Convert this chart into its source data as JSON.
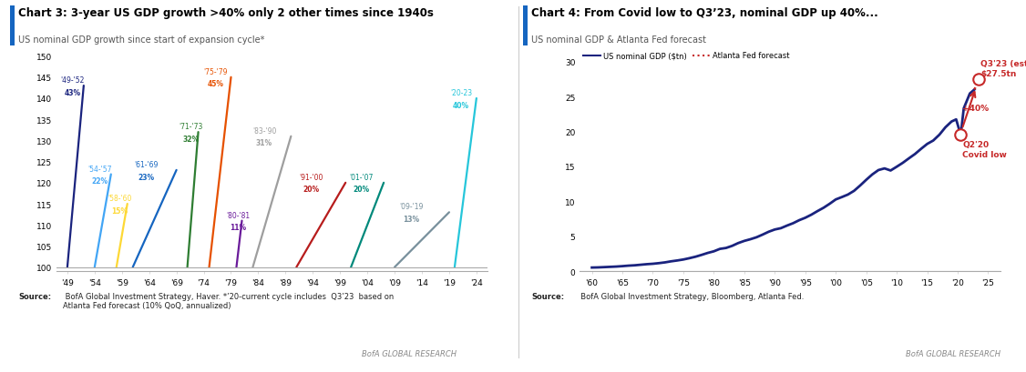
{
  "chart3": {
    "title": "Chart 3: 3-year US GDP growth >40% only 2 other times since 1940s",
    "subtitle": "US nominal GDP growth since start of expansion cycle*",
    "bars": [
      {
        "label": "'49-'52",
        "pct": "43%",
        "x_start": 49,
        "x_end": 52,
        "y_end": 143,
        "color": "#1a237e"
      },
      {
        "label": "'54-'57",
        "pct": "22%",
        "x_start": 54,
        "x_end": 57,
        "y_end": 122,
        "color": "#42a5f5"
      },
      {
        "label": "'58-'60",
        "pct": "15%",
        "x_start": 58,
        "x_end": 60,
        "y_end": 115,
        "color": "#fdd835"
      },
      {
        "label": "'61-'69",
        "pct": "23%",
        "x_start": 61,
        "x_end": 69,
        "y_end": 123,
        "color": "#1565c0"
      },
      {
        "label": "'71-'73",
        "pct": "32%",
        "x_start": 71,
        "x_end": 73,
        "y_end": 132,
        "color": "#2e7d32"
      },
      {
        "label": "'75-'79",
        "pct": "45%",
        "x_start": 75,
        "x_end": 79,
        "y_end": 145,
        "color": "#e65100"
      },
      {
        "label": "'80-'81",
        "pct": "11%",
        "x_start": 80,
        "x_end": 81,
        "y_end": 111,
        "color": "#6a1b9a"
      },
      {
        "label": "'83-'90",
        "pct": "31%",
        "x_start": 83,
        "x_end": 90,
        "y_end": 131,
        "color": "#9e9e9e"
      },
      {
        "label": "'91-'00",
        "pct": "20%",
        "x_start": 91,
        "x_end": 100,
        "y_end": 120,
        "color": "#b71c1c"
      },
      {
        "label": "'01-'07",
        "pct": "20%",
        "x_start": 101,
        "x_end": 107,
        "y_end": 120,
        "color": "#00897b"
      },
      {
        "label": "'09-'19",
        "pct": "13%",
        "x_start": 109,
        "x_end": 119,
        "y_end": 113,
        "color": "#78909c"
      },
      {
        "label": "'20-23",
        "pct": "40%",
        "x_start": 120,
        "x_end": 124,
        "y_end": 140,
        "color": "#26c6da"
      }
    ],
    "xlim": [
      47,
      126
    ],
    "ylim": [
      99,
      152
    ],
    "yticks": [
      100,
      105,
      110,
      115,
      120,
      125,
      130,
      135,
      140,
      145,
      150
    ],
    "xticks": [
      49,
      54,
      59,
      64,
      69,
      74,
      79,
      84,
      89,
      94,
      99,
      104,
      109,
      114,
      119,
      124
    ],
    "xtick_labels": [
      "'49",
      "'54",
      "'59",
      "'64",
      "'69",
      "'74",
      "'79",
      "'84",
      "'89",
      "'94",
      "'99",
      "'04",
      "'09",
      "'14",
      "'19",
      "'24"
    ],
    "source_bold": "Source:",
    "source_normal": " BofA Global Investment Strategy, Haver. *’20-current cycle includes  Q3’23  based on\nAtlanta Fed forecast (10% QoQ, annualized)",
    "bofa_label": "BofA GLOBAL RESEARCH",
    "accent_color": "#1565c0"
  },
  "chart4": {
    "title": "Chart 4: From Covid low to Q3’23, nominal GDP up 40%...",
    "subtitle": "US nominal GDP & Atlanta Fed forecast",
    "gdp_years": [
      1960,
      1961,
      1962,
      1963,
      1964,
      1965,
      1966,
      1967,
      1968,
      1969,
      1970,
      1971,
      1972,
      1973,
      1974,
      1975,
      1976,
      1977,
      1978,
      1979,
      1980,
      1981,
      1982,
      1983,
      1984,
      1985,
      1986,
      1987,
      1988,
      1989,
      1990,
      1991,
      1992,
      1993,
      1994,
      1995,
      1996,
      1997,
      1998,
      1999,
      2000,
      2001,
      2002,
      2003,
      2004,
      2005,
      2006,
      2007,
      2008,
      2009,
      2010,
      2011,
      2012,
      2013,
      2014,
      2015,
      2016,
      2017,
      2018,
      2019,
      2019.75,
      2020.5,
      2021.0,
      2022.0,
      2022.75
    ],
    "gdp_values": [
      0.54,
      0.56,
      0.6,
      0.64,
      0.68,
      0.74,
      0.81,
      0.86,
      0.94,
      1.02,
      1.08,
      1.17,
      1.28,
      1.43,
      1.55,
      1.69,
      1.88,
      2.09,
      2.35,
      2.63,
      2.86,
      3.21,
      3.34,
      3.64,
      4.04,
      4.35,
      4.59,
      4.87,
      5.25,
      5.66,
      5.98,
      6.17,
      6.54,
      6.88,
      7.31,
      7.66,
      8.1,
      8.61,
      9.09,
      9.66,
      10.28,
      10.62,
      10.98,
      11.51,
      12.27,
      13.09,
      13.86,
      14.48,
      14.72,
      14.42,
      14.96,
      15.52,
      16.16,
      16.78,
      17.52,
      18.22,
      18.71,
      19.54,
      20.61,
      21.43,
      21.73,
      19.52,
      23.32,
      25.44,
      26.0
    ],
    "forecast_years": [
      2022.75,
      2023.5
    ],
    "forecast_values": [
      26.0,
      27.5
    ],
    "covid_low_year": 2020.5,
    "covid_low_value": 19.52,
    "q3_23_year": 2023.5,
    "q3_23_value": 27.5,
    "xlim": [
      1958,
      2027
    ],
    "ylim": [
      0,
      32
    ],
    "yticks": [
      0,
      5,
      10,
      15,
      20,
      25,
      30
    ],
    "xticks": [
      1960,
      1965,
      1970,
      1975,
      1980,
      1985,
      1990,
      1995,
      2000,
      2005,
      2010,
      2015,
      2020,
      2025
    ],
    "xtick_labels": [
      "'60",
      "'65",
      "'70",
      "'75",
      "'80",
      "'85",
      "'90",
      "'95",
      "'00",
      "'05",
      "'10",
      "'15",
      "'20",
      "'25"
    ],
    "line_color": "#1a237e",
    "forecast_color": "#c62828",
    "annotation_color": "#c62828",
    "source_bold": "Source:",
    "source_normal": "  BofA Global Investment Strategy, Bloomberg, Atlanta Fed.",
    "bofa_label": "BofA GLOBAL RESEARCH",
    "accent_color": "#1565c0",
    "legend_gdp": "US nominal GDP ($tn)",
    "legend_forecast": "Atlanta Fed forecast"
  },
  "bg_color": "#ffffff",
  "title_color": "#000000",
  "subtitle_color": "#555555"
}
